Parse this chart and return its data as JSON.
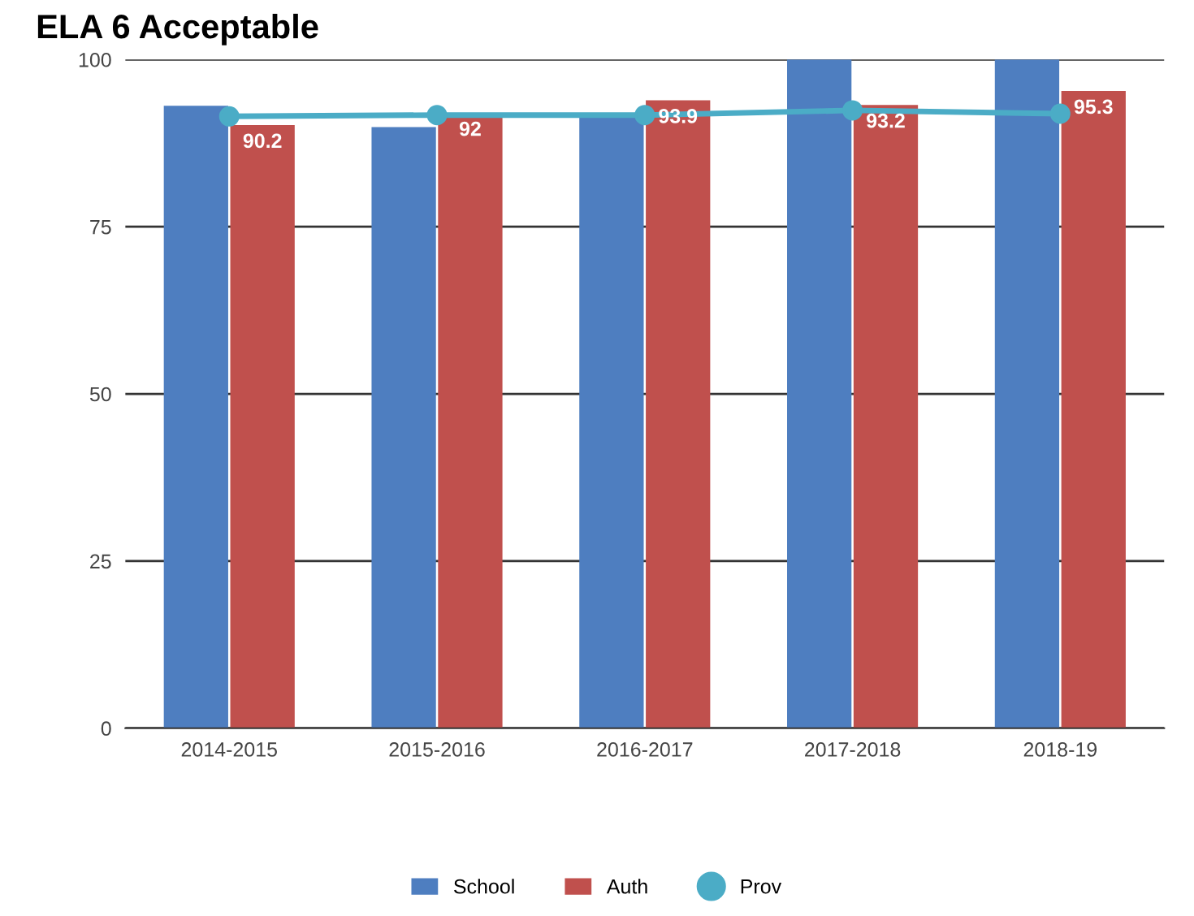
{
  "chart_data": {
    "type": "bar",
    "title": "ELA 6 Acceptable",
    "categories": [
      "2014-2015",
      "2015-2016",
      "2016-2017",
      "2017-2018",
      "2018-19"
    ],
    "series": [
      {
        "name": "School",
        "color": "#4e7ec0",
        "values": [
          93.1,
          89.9,
          91.7,
          100,
          100
        ]
      },
      {
        "name": "Auth",
        "color": "#c0504d",
        "values": [
          90.2,
          92,
          93.9,
          93.2,
          95.3
        ],
        "value_labels": [
          "90.2",
          "92",
          "93.9",
          "93.2",
          "95.3"
        ]
      },
      {
        "name": "Prov",
        "type": "line",
        "color": "#4bacc6",
        "marker": "circle",
        "values": [
          91.5,
          91.7,
          91.7,
          92.4,
          91.9
        ]
      }
    ],
    "ylim": [
      0,
      100
    ],
    "yticks": [
      0,
      25,
      50,
      75,
      100
    ],
    "grid": "y",
    "legend": "bottom"
  }
}
